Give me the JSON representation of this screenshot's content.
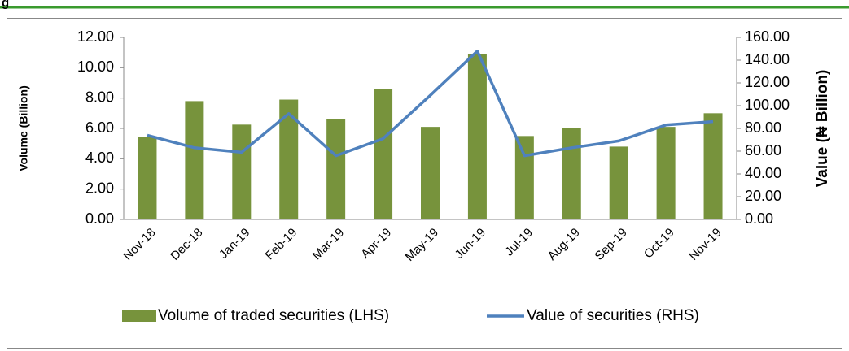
{
  "caption": "g",
  "chart_data": {
    "type": "combo",
    "categories": [
      "Nov-18",
      "Dec-18",
      "Jan-19",
      "Feb-19",
      "Mar-19",
      "Apr-19",
      "May-19",
      "Jun-19",
      "Jul-19",
      "Aug-19",
      "Sep-19",
      "Oct-19",
      "Nov-19"
    ],
    "y_label": "Volume (Billion)",
    "y2_label": "Value (₦ Billion)",
    "series": [
      {
        "name": "Volume of traded securities (LHS)",
        "type": "bar",
        "color": "#77933c",
        "values": [
          5.45,
          7.8,
          6.25,
          7.9,
          6.6,
          8.6,
          6.1,
          10.9,
          5.5,
          6.0,
          4.8,
          6.1,
          7.0
        ]
      },
      {
        "name": "Value of securities (RHS)",
        "type": "line",
        "color": "#4f81bd",
        "axis": "y2",
        "values": [
          74,
          63,
          59,
          93,
          56,
          71,
          109,
          148,
          56,
          63,
          69,
          83,
          86
        ]
      }
    ],
    "ylim": [
      0,
      12
    ],
    "yticks": [
      {
        "value": 0,
        "label": "0.00"
      },
      {
        "value": 2,
        "label": "2.00"
      },
      {
        "value": 4,
        "label": "4.00"
      },
      {
        "value": 6,
        "label": "6.00"
      },
      {
        "value": 8,
        "label": "8.00"
      },
      {
        "value": 10,
        "label": "10.00"
      },
      {
        "value": 12,
        "label": "12.00"
      }
    ],
    "y2lim": [
      0,
      160
    ],
    "y2ticks": [
      {
        "value": 0,
        "label": "0.00"
      },
      {
        "value": 20,
        "label": "20.00"
      },
      {
        "value": 40,
        "label": "40.00"
      },
      {
        "value": 60,
        "label": "60.00"
      },
      {
        "value": 80,
        "label": "80.00"
      },
      {
        "value": 100,
        "label": "100.00"
      },
      {
        "value": 120,
        "label": "120.00"
      },
      {
        "value": 140,
        "label": "140.00"
      },
      {
        "value": 160,
        "label": "160.00"
      }
    ]
  }
}
